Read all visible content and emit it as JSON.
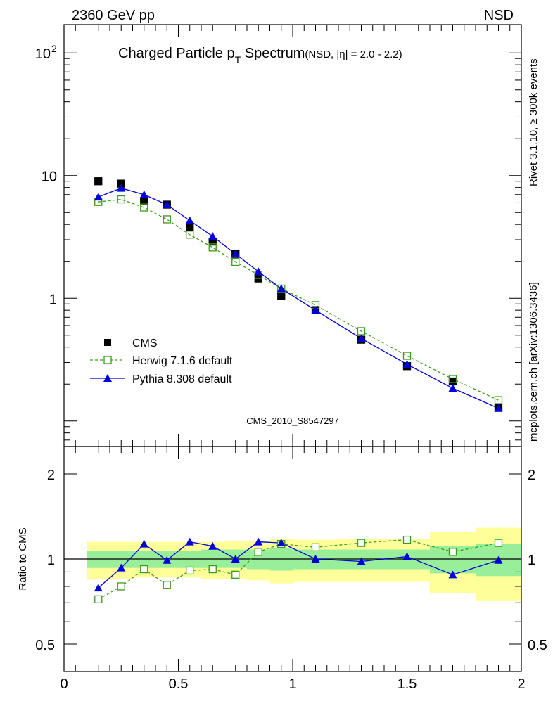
{
  "header": {
    "left": "2360 GeV pp",
    "right": "NSD"
  },
  "title": {
    "main": "Charged Particle p",
    "sub": "T",
    "main2": " Spectrum",
    "suffix": "(NSD, |η| = 2.0 - 2.2)"
  },
  "side_labels": {
    "rivet": "Rivet 3.1.10, ≥ 300k events",
    "mcplots": "mcplots.cern.ch [arXiv:1306.3436]"
  },
  "watermark": "CMS_2010_S8547297",
  "legend": [
    {
      "label": "CMS",
      "color": "#000000",
      "marker": "square-filled"
    },
    {
      "label": "Herwig 7.1.6 default",
      "color": "#3a9a1a",
      "marker": "square-open",
      "dash": true
    },
    {
      "label": "Pythia 8.308 default",
      "color": "#0000dd",
      "marker": "triangle"
    }
  ],
  "ratio_ylabel": "Ratio to CMS",
  "main_yticks": [
    {
      "value": 100,
      "label": "10",
      "sup": "2"
    },
    {
      "value": 10,
      "label": "10",
      "sup": ""
    },
    {
      "value": 1,
      "label": "1",
      "sup": ""
    }
  ],
  "ratio_yticks": [
    "2",
    "1",
    "0.5"
  ],
  "xticks": [
    "0",
    "0.5",
    "1",
    "1.5",
    "2"
  ],
  "chart_data": {
    "type": "scatter",
    "xlim": [
      0,
      2
    ],
    "main": {
      "yscale": "log",
      "ylim": [
        0.062,
        170
      ],
      "series": [
        {
          "name": "CMS",
          "x": [
            0.15,
            0.25,
            0.35,
            0.45,
            0.55,
            0.65,
            0.75,
            0.85,
            0.95,
            1.1,
            1.3,
            1.5,
            1.7,
            1.9
          ],
          "y": [
            9.0,
            8.6,
            6.2,
            5.8,
            3.8,
            2.9,
            2.3,
            1.45,
            1.05,
            0.8,
            0.46,
            0.28,
            0.21,
            0.128
          ]
        },
        {
          "name": "Herwig 7.1.6 default",
          "x": [
            0.15,
            0.25,
            0.35,
            0.45,
            0.55,
            0.65,
            0.75,
            0.85,
            0.95,
            1.1,
            1.3,
            1.5,
            1.7,
            1.9
          ],
          "y": [
            6.1,
            6.4,
            5.5,
            4.4,
            3.3,
            2.6,
            1.98,
            1.55,
            1.2,
            0.88,
            0.54,
            0.34,
            0.22,
            0.148
          ]
        },
        {
          "name": "Pythia 8.308 default",
          "x": [
            0.15,
            0.25,
            0.35,
            0.45,
            0.55,
            0.65,
            0.75,
            0.85,
            0.95,
            1.1,
            1.3,
            1.5,
            1.7,
            1.9
          ],
          "y": [
            6.7,
            7.9,
            7.0,
            5.8,
            4.3,
            3.2,
            2.3,
            1.65,
            1.2,
            0.8,
            0.47,
            0.29,
            0.185,
            0.127
          ]
        }
      ]
    },
    "ratio": {
      "yscale": "log",
      "ylim": [
        0.4,
        2.5
      ],
      "reference": 1,
      "bands": [
        {
          "x0": 0.1,
          "x1": 0.2,
          "inner": [
            0.93,
            1.07
          ],
          "outer": [
            0.85,
            1.15
          ]
        },
        {
          "x0": 0.2,
          "x1": 0.3,
          "inner": [
            0.93,
            1.07
          ],
          "outer": [
            0.85,
            1.15
          ]
        },
        {
          "x0": 0.3,
          "x1": 0.4,
          "inner": [
            0.93,
            1.07
          ],
          "outer": [
            0.86,
            1.15
          ]
        },
        {
          "x0": 0.4,
          "x1": 0.5,
          "inner": [
            0.93,
            1.07
          ],
          "outer": [
            0.86,
            1.15
          ]
        },
        {
          "x0": 0.5,
          "x1": 0.6,
          "inner": [
            0.93,
            1.07
          ],
          "outer": [
            0.86,
            1.15
          ]
        },
        {
          "x0": 0.6,
          "x1": 0.7,
          "inner": [
            0.93,
            1.08
          ],
          "outer": [
            0.85,
            1.15
          ]
        },
        {
          "x0": 0.7,
          "x1": 0.8,
          "inner": [
            0.93,
            1.08
          ],
          "outer": [
            0.85,
            1.16
          ]
        },
        {
          "x0": 0.8,
          "x1": 0.9,
          "inner": [
            0.92,
            1.08
          ],
          "outer": [
            0.84,
            1.16
          ]
        },
        {
          "x0": 0.9,
          "x1": 1.0,
          "inner": [
            0.91,
            1.09
          ],
          "outer": [
            0.82,
            1.18
          ]
        },
        {
          "x0": 1.0,
          "x1": 1.2,
          "inner": [
            0.92,
            1.08
          ],
          "outer": [
            0.83,
            1.17
          ]
        },
        {
          "x0": 1.2,
          "x1": 1.4,
          "inner": [
            0.92,
            1.08
          ],
          "outer": [
            0.83,
            1.18
          ]
        },
        {
          "x0": 1.4,
          "x1": 1.6,
          "inner": [
            0.92,
            1.08
          ],
          "outer": [
            0.83,
            1.18
          ]
        },
        {
          "x0": 1.6,
          "x1": 1.8,
          "inner": [
            0.89,
            1.11
          ],
          "outer": [
            0.76,
            1.25
          ]
        },
        {
          "x0": 1.8,
          "x1": 2.0,
          "inner": [
            0.87,
            1.13
          ],
          "outer": [
            0.71,
            1.29
          ]
        }
      ],
      "series": [
        {
          "name": "Herwig 7.1.6 default",
          "x": [
            0.15,
            0.25,
            0.35,
            0.45,
            0.55,
            0.65,
            0.75,
            0.85,
            0.95,
            1.1,
            1.3,
            1.5,
            1.7,
            1.9
          ],
          "y": [
            0.72,
            0.8,
            0.92,
            0.81,
            0.91,
            0.92,
            0.88,
            1.06,
            1.13,
            1.1,
            1.14,
            1.17,
            1.06,
            1.14
          ]
        },
        {
          "name": "Pythia 8.308 default",
          "x": [
            0.15,
            0.25,
            0.35,
            0.45,
            0.55,
            0.65,
            0.75,
            0.85,
            0.95,
            1.1,
            1.3,
            1.5,
            1.7,
            1.9
          ],
          "y": [
            0.79,
            0.93,
            1.13,
            0.99,
            1.15,
            1.11,
            1.0,
            1.15,
            1.14,
            1.0,
            0.98,
            1.02,
            0.88,
            0.99
          ]
        }
      ]
    },
    "colors": {
      "inner_band": "#99ee99",
      "outer_band": "#ffff99"
    }
  }
}
